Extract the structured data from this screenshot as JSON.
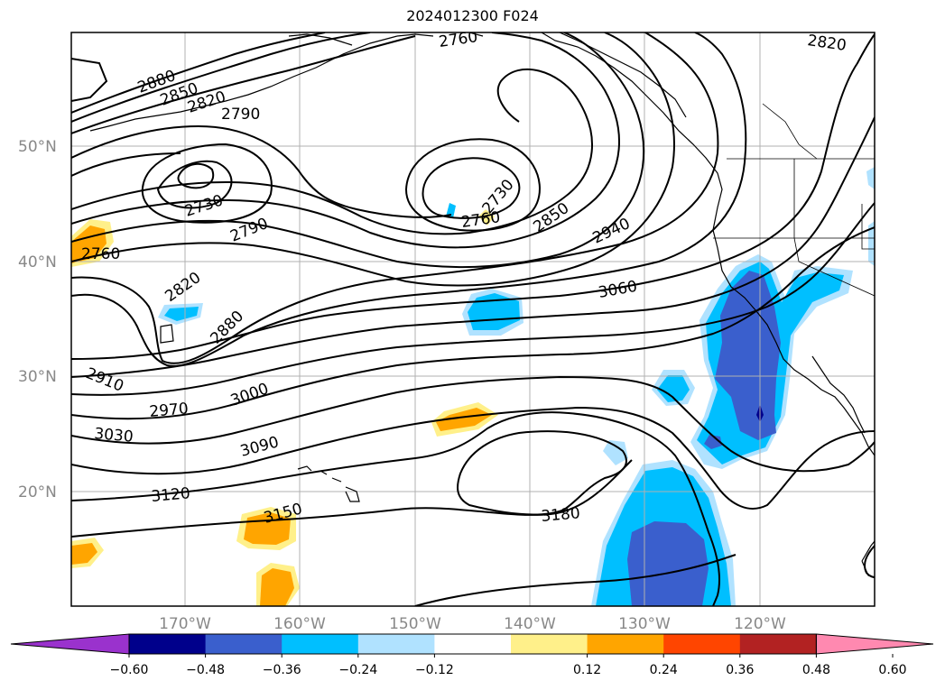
{
  "title": "2024012300 F024",
  "latitude_labels": [
    "50°N",
    "40°N",
    "30°N",
    "20°N"
  ],
  "longitude_labels": [
    "170°W",
    "160°W",
    "150°W",
    "140°W",
    "130°W",
    "120°W"
  ],
  "contour_labels": [
    "2880",
    "2850",
    "2820",
    "2790",
    "2760",
    "2820",
    "2730",
    "2760",
    "2790",
    "2730",
    "2760",
    "2850",
    "2940",
    "2820",
    "2880",
    "3060",
    "2910",
    "2970",
    "3000",
    "3030",
    "3090",
    "3120",
    "3150",
    "3180"
  ],
  "colorbar": {
    "tick_labels": [
      "−0.60",
      "−0.48",
      "−0.36",
      "−0.24",
      "−0.12",
      "0.12",
      "0.24",
      "0.36",
      "0.48",
      "0.60"
    ],
    "colors": [
      "#9a32cd",
      "#00008b",
      "#3a5fcd",
      "#00bfff",
      "#b0e2ff",
      "#ffffff",
      "#fff08a",
      "#ffa500",
      "#ff4500",
      "#b22222",
      "#ff89b0"
    ]
  },
  "colors": {
    "grid": "#b0b0b0",
    "axis_label": "#888888",
    "shade_light_blue": "#b0e2ff",
    "shade_blue": "#00bfff",
    "shade_dark_blue": "#3a5fcd",
    "shade_navy": "#00008b",
    "shade_yellow": "#fff08a",
    "shade_orange": "#ffa500"
  }
}
